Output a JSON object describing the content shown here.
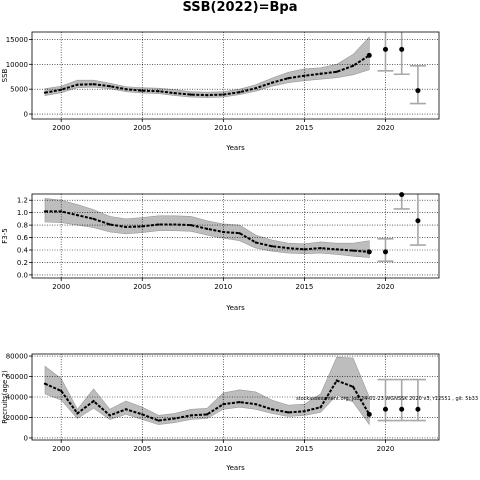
{
  "title": "SSB(2022)=Bpa",
  "colors": {
    "band": "#bdbdbd",
    "band_edge": "#9a9a9a",
    "line": "#000000",
    "grid": "#000000",
    "bar": "#a8a8a8"
  },
  "chart_data": [
    {
      "type": "line",
      "ylabel": "SSB",
      "xlabel": "Years",
      "xlim": [
        1998.2,
        2023.3
      ],
      "ylim": [
        -1000,
        16500
      ],
      "xticks": [
        2000,
        2005,
        2010,
        2015,
        2020
      ],
      "yticks": [
        0,
        5000,
        10000,
        15000
      ],
      "grid": true,
      "series": [
        {
          "x": [
            1999,
            2000,
            2001,
            2002,
            2003,
            2004,
            2005,
            2006,
            2007,
            2008,
            2009,
            2010,
            2011,
            2012,
            2013,
            2014,
            2015,
            2016,
            2017,
            2018,
            2019
          ],
          "values": [
            4300,
            4900,
            5900,
            6000,
            5600,
            5000,
            4700,
            4600,
            4200,
            3900,
            3800,
            3900,
            4400,
            5200,
            6300,
            7200,
            7700,
            8100,
            8500,
            9700,
            11800
          ],
          "lower": [
            3700,
            4300,
            5300,
            5400,
            5100,
            4500,
            4200,
            4100,
            3700,
            3400,
            3300,
            3400,
            3900,
            4600,
            5600,
            6300,
            6700,
            7000,
            7300,
            7900,
            8900
          ],
          "upper": [
            5100,
            5600,
            6800,
            6800,
            6200,
            5500,
            5300,
            5200,
            4900,
            4500,
            4400,
            4500,
            5000,
            5900,
            7200,
            8400,
            9100,
            9300,
            10000,
            12000,
            15500
          ]
        }
      ],
      "forecast": [
        {
          "x": 2020,
          "value": 13000,
          "lower": 8700,
          "upper": 16500
        },
        {
          "x": 2021,
          "value": 13000,
          "lower": 8000,
          "upper": 16500
        },
        {
          "x": 2022,
          "value": 4700,
          "lower": 2100,
          "upper": 9700
        }
      ]
    },
    {
      "type": "line",
      "ylabel": "F3-5",
      "xlabel": "Years",
      "xlim": [
        1998.2,
        2023.3
      ],
      "ylim": [
        -0.05,
        1.3
      ],
      "xticks": [
        2000,
        2005,
        2010,
        2015,
        2020
      ],
      "yticks": [
        0.0,
        0.2,
        0.4,
        0.6,
        0.8,
        1.0,
        1.2
      ],
      "yticklabels": [
        "0.0",
        "0.2",
        "0.4",
        "0.6",
        "0.8",
        "1.0",
        "1.2"
      ],
      "grid": true,
      "series": [
        {
          "x": [
            1999,
            2000,
            2001,
            2002,
            2003,
            2004,
            2005,
            2006,
            2007,
            2008,
            2009,
            2010,
            2011,
            2012,
            2013,
            2014,
            2015,
            2016,
            2017,
            2018,
            2019
          ],
          "values": [
            1.02,
            1.02,
            0.96,
            0.9,
            0.81,
            0.77,
            0.78,
            0.81,
            0.81,
            0.8,
            0.74,
            0.69,
            0.67,
            0.52,
            0.46,
            0.43,
            0.41,
            0.43,
            0.41,
            0.39,
            0.37
          ],
          "lower": [
            0.85,
            0.84,
            0.8,
            0.76,
            0.69,
            0.66,
            0.68,
            0.71,
            0.71,
            0.7,
            0.64,
            0.59,
            0.55,
            0.43,
            0.38,
            0.35,
            0.34,
            0.35,
            0.33,
            0.3,
            0.28
          ],
          "upper": [
            1.23,
            1.2,
            1.13,
            1.05,
            0.94,
            0.9,
            0.92,
            0.95,
            0.95,
            0.94,
            0.87,
            0.82,
            0.8,
            0.64,
            0.56,
            0.51,
            0.5,
            0.53,
            0.51,
            0.51,
            0.55
          ]
        }
      ],
      "forecast": [
        {
          "x": 2020,
          "value": 0.37,
          "lower": 0.22,
          "upper": 0.58
        },
        {
          "x": 2021,
          "value": 1.29,
          "lower": 1.06,
          "upper": 1.3
        },
        {
          "x": 2022,
          "value": 0.87,
          "lower": 0.48,
          "upper": 1.3
        }
      ]
    },
    {
      "type": "line",
      "ylabel": "Recruits(age 2)",
      "xlabel": "Years",
      "xlim": [
        1998.2,
        2023.3
      ],
      "ylim": [
        -2000,
        82000
      ],
      "xticks": [
        2000,
        2005,
        2010,
        2015,
        2020
      ],
      "yticks": [
        0,
        20000,
        40000,
        60000,
        80000
      ],
      "grid": true,
      "annotation": "stockassessment.org, job 24-01-23 WGNSSK 2020 v3, r12551 , git: 5b33",
      "series": [
        {
          "x": [
            1999,
            2000,
            2001,
            2002,
            2003,
            2004,
            2005,
            2006,
            2007,
            2008,
            2009,
            2010,
            2011,
            2012,
            2013,
            2014,
            2015,
            2016,
            2017,
            2018,
            2019
          ],
          "values": [
            53000,
            46000,
            24000,
            36000,
            22000,
            28000,
            23000,
            17000,
            19000,
            22000,
            23000,
            33000,
            35000,
            33000,
            28000,
            25000,
            26000,
            30000,
            56000,
            50000,
            23000
          ],
          "lower": [
            43000,
            37000,
            19000,
            29000,
            18000,
            23000,
            18000,
            13000,
            15000,
            18000,
            19000,
            28000,
            30000,
            28000,
            24000,
            21000,
            22000,
            25000,
            42000,
            35000,
            13000
          ],
          "upper": [
            70000,
            58000,
            28000,
            48000,
            28000,
            36000,
            30000,
            22000,
            24000,
            28000,
            29000,
            44000,
            47000,
            45000,
            37000,
            32000,
            33000,
            43000,
            79000,
            78000,
            40000
          ]
        }
      ],
      "forecast": [
        {
          "x": 2020,
          "value": 28000,
          "lower": 17000,
          "upper": 57000
        },
        {
          "x": 2021,
          "value": 28000,
          "lower": 17000,
          "upper": 57000
        },
        {
          "x": 2022,
          "value": 28000,
          "lower": 17000,
          "upper": 57000
        }
      ]
    }
  ]
}
